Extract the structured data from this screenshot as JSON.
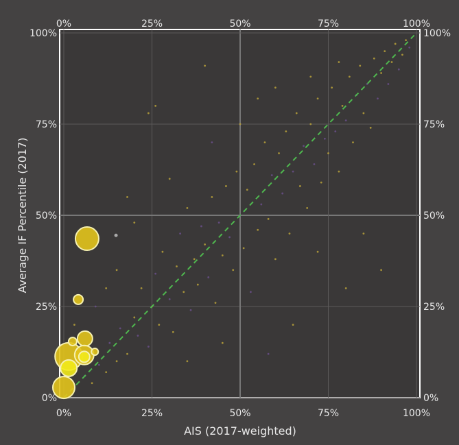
{
  "chart_data": {
    "type": "scatter",
    "xlabel": "AIS (2017-weighted)",
    "ylabel": "Average IF Percentile (2017)",
    "xlim": [
      0,
      100
    ],
    "ylim": [
      0,
      100
    ],
    "grid": true,
    "x_ticks": [
      "0%",
      "25%",
      "50%",
      "75%",
      "100%"
    ],
    "y_ticks": [
      "0%",
      "25%",
      "50%",
      "75%",
      "100%"
    ],
    "tick_values": [
      0,
      25,
      50,
      75,
      100
    ],
    "reference_line": {
      "from": [
        0,
        0
      ],
      "to": [
        100,
        100
      ],
      "color": "#4fb84f",
      "style": "dashed"
    },
    "colors": {
      "bubble": "#e3c41c",
      "bubble_bright": "#f2ea1a",
      "dot_yellow": "#b9a13a",
      "dot_purple": "#6a4f8a",
      "dot_gray": "#bdbdbd"
    },
    "bubbles": [
      {
        "x": 6.6,
        "y": 43.6,
        "size": 17
      },
      {
        "x": 4.1,
        "y": 26.9,
        "size": 7
      },
      {
        "x": 1.4,
        "y": 11.3,
        "size": 20
      },
      {
        "x": 0.0,
        "y": 2.8,
        "size": 16
      },
      {
        "x": 6.0,
        "y": 16.2,
        "size": 11
      },
      {
        "x": 2.5,
        "y": 15.4,
        "size": 6
      },
      {
        "x": 5.8,
        "y": 11.7,
        "size": 14
      },
      {
        "x": 8.8,
        "y": 12.6,
        "size": 5
      },
      {
        "x": 1.4,
        "y": 8.1,
        "size": 12,
        "bright": true
      },
      {
        "x": 5.8,
        "y": 11.2,
        "size": 8,
        "bright": true
      }
    ],
    "points": [
      [
        14.8,
        44.5,
        "g"
      ],
      [
        3,
        20,
        "y"
      ],
      [
        6,
        6,
        "p"
      ],
      [
        8,
        4,
        "y"
      ],
      [
        10,
        9,
        "p"
      ],
      [
        12,
        7,
        "y"
      ],
      [
        13,
        15,
        "p"
      ],
      [
        15,
        10,
        "y"
      ],
      [
        16,
        19,
        "p"
      ],
      [
        18,
        12,
        "y"
      ],
      [
        20,
        22,
        "y"
      ],
      [
        21,
        17,
        "p"
      ],
      [
        22,
        30,
        "y"
      ],
      [
        24,
        14,
        "p"
      ],
      [
        25,
        25,
        "y"
      ],
      [
        26,
        34,
        "p"
      ],
      [
        27,
        20,
        "y"
      ],
      [
        28,
        40,
        "y"
      ],
      [
        30,
        27,
        "p"
      ],
      [
        31,
        18,
        "y"
      ],
      [
        32,
        36,
        "y"
      ],
      [
        33,
        45,
        "p"
      ],
      [
        34,
        29,
        "y"
      ],
      [
        35,
        52,
        "y"
      ],
      [
        36,
        24,
        "p"
      ],
      [
        37,
        38,
        "y"
      ],
      [
        38,
        31,
        "y"
      ],
      [
        39,
        47,
        "p"
      ],
      [
        40,
        42,
        "y"
      ],
      [
        41,
        33,
        "p"
      ],
      [
        42,
        55,
        "y"
      ],
      [
        43,
        26,
        "y"
      ],
      [
        44,
        48,
        "p"
      ],
      [
        45,
        39,
        "y"
      ],
      [
        46,
        58,
        "y"
      ],
      [
        47,
        44,
        "p"
      ],
      [
        48,
        35,
        "y"
      ],
      [
        49,
        62,
        "y"
      ],
      [
        50,
        50,
        "p"
      ],
      [
        51,
        41,
        "y"
      ],
      [
        52,
        57,
        "y"
      ],
      [
        53,
        29,
        "p"
      ],
      [
        54,
        64,
        "y"
      ],
      [
        55,
        46,
        "y"
      ],
      [
        56,
        53,
        "p"
      ],
      [
        57,
        70,
        "y"
      ],
      [
        58,
        49,
        "y"
      ],
      [
        59,
        61,
        "p"
      ],
      [
        60,
        38,
        "y"
      ],
      [
        61,
        67,
        "y"
      ],
      [
        62,
        56,
        "p"
      ],
      [
        63,
        73,
        "y"
      ],
      [
        64,
        45,
        "y"
      ],
      [
        65,
        62,
        "p"
      ],
      [
        66,
        78,
        "y"
      ],
      [
        67,
        58,
        "y"
      ],
      [
        68,
        69,
        "p"
      ],
      [
        69,
        52,
        "y"
      ],
      [
        70,
        75,
        "y"
      ],
      [
        71,
        64,
        "p"
      ],
      [
        72,
        82,
        "y"
      ],
      [
        73,
        59,
        "y"
      ],
      [
        74,
        71,
        "p"
      ],
      [
        75,
        67,
        "y"
      ],
      [
        76,
        85,
        "y"
      ],
      [
        77,
        73,
        "p"
      ],
      [
        78,
        62,
        "y"
      ],
      [
        79,
        80,
        "y"
      ],
      [
        80,
        76,
        "p"
      ],
      [
        81,
        88,
        "y"
      ],
      [
        82,
        70,
        "y"
      ],
      [
        83,
        83,
        "p"
      ],
      [
        84,
        91,
        "y"
      ],
      [
        85,
        78,
        "y"
      ],
      [
        86,
        86,
        "p"
      ],
      [
        87,
        74,
        "y"
      ],
      [
        88,
        93,
        "y"
      ],
      [
        89,
        82,
        "p"
      ],
      [
        90,
        89,
        "y"
      ],
      [
        91,
        95,
        "y"
      ],
      [
        92,
        86,
        "p"
      ],
      [
        93,
        92,
        "y"
      ],
      [
        94,
        97,
        "y"
      ],
      [
        95,
        90,
        "p"
      ],
      [
        96,
        94,
        "y"
      ],
      [
        97,
        98,
        "y"
      ],
      [
        98,
        96,
        "p"
      ],
      [
        26,
        80,
        "y"
      ],
      [
        24,
        78,
        "y"
      ],
      [
        40,
        91,
        "y"
      ],
      [
        55,
        82,
        "y"
      ],
      [
        60,
        85,
        "y"
      ],
      [
        45,
        15,
        "y"
      ],
      [
        65,
        20,
        "y"
      ],
      [
        80,
        30,
        "y"
      ],
      [
        85,
        45,
        "y"
      ],
      [
        90,
        35,
        "y"
      ],
      [
        72,
        40,
        "y"
      ],
      [
        35,
        10,
        "y"
      ],
      [
        58,
        12,
        "p"
      ],
      [
        20,
        48,
        "y"
      ],
      [
        18,
        55,
        "y"
      ],
      [
        30,
        60,
        "y"
      ],
      [
        12,
        30,
        "y"
      ],
      [
        9,
        25,
        "p"
      ],
      [
        15,
        35,
        "y"
      ],
      [
        70,
        88,
        "y"
      ],
      [
        50,
        75,
        "y"
      ],
      [
        42,
        70,
        "p"
      ],
      [
        78,
        92,
        "y"
      ]
    ]
  }
}
